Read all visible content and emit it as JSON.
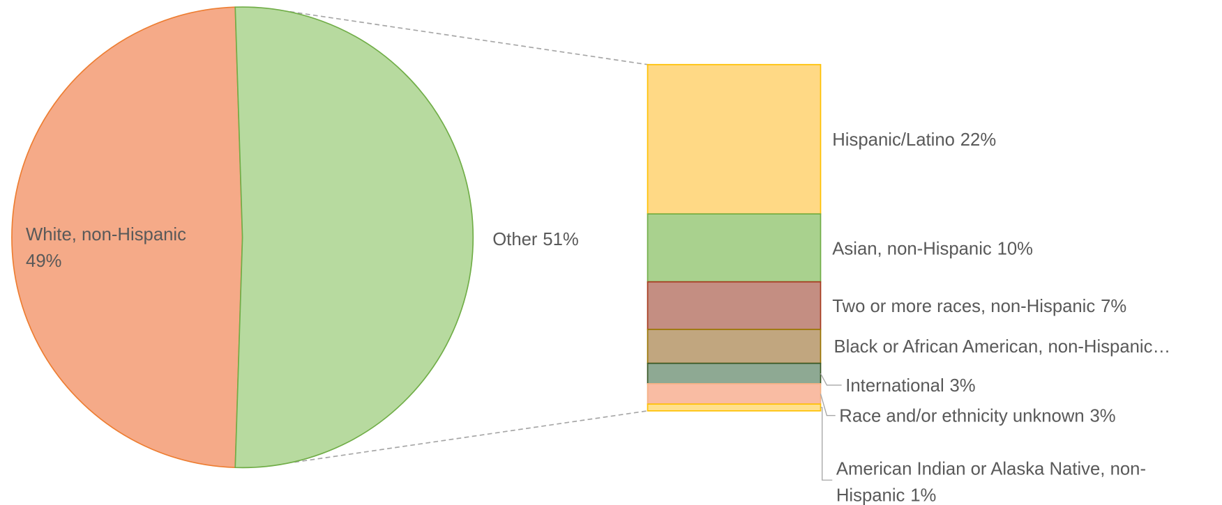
{
  "chart_data": {
    "type": "pie",
    "categories": [
      "White, non-Hispanic",
      "Other"
    ],
    "values": [
      49,
      51
    ],
    "value_labels": [
      "49%",
      "51%"
    ],
    "colors": [
      "#f5aa88",
      "#b7da9f"
    ],
    "stroke_colors": [
      "#ed7d31",
      "#70ad47"
    ],
    "breakdown": {
      "categories": [
        "Hispanic/Latino",
        "Asian, non-Hispanic",
        "Two or more races, non-Hispanic",
        "Black or African American, non-Hispanic…",
        "International",
        "Race and/or ethnicity unknown",
        "American Indian or Alaska Native, non-Hispanic"
      ],
      "values": [
        22,
        10,
        7,
        5,
        3,
        3,
        1
      ],
      "value_labels": [
        "22%",
        "10%",
        "7%",
        null,
        "3%",
        "3%",
        "1%"
      ],
      "colors": [
        "#ffd985",
        "#a9d18e",
        "#c48e82",
        "#c1a67f",
        "#8ea993",
        "#f9bca3",
        "#ffe08e"
      ],
      "stroke_colors": [
        "#ffc000",
        "#70ad47",
        "#a5391c",
        "#997300",
        "#375623",
        "#f4b183",
        "#ffc000"
      ]
    }
  }
}
